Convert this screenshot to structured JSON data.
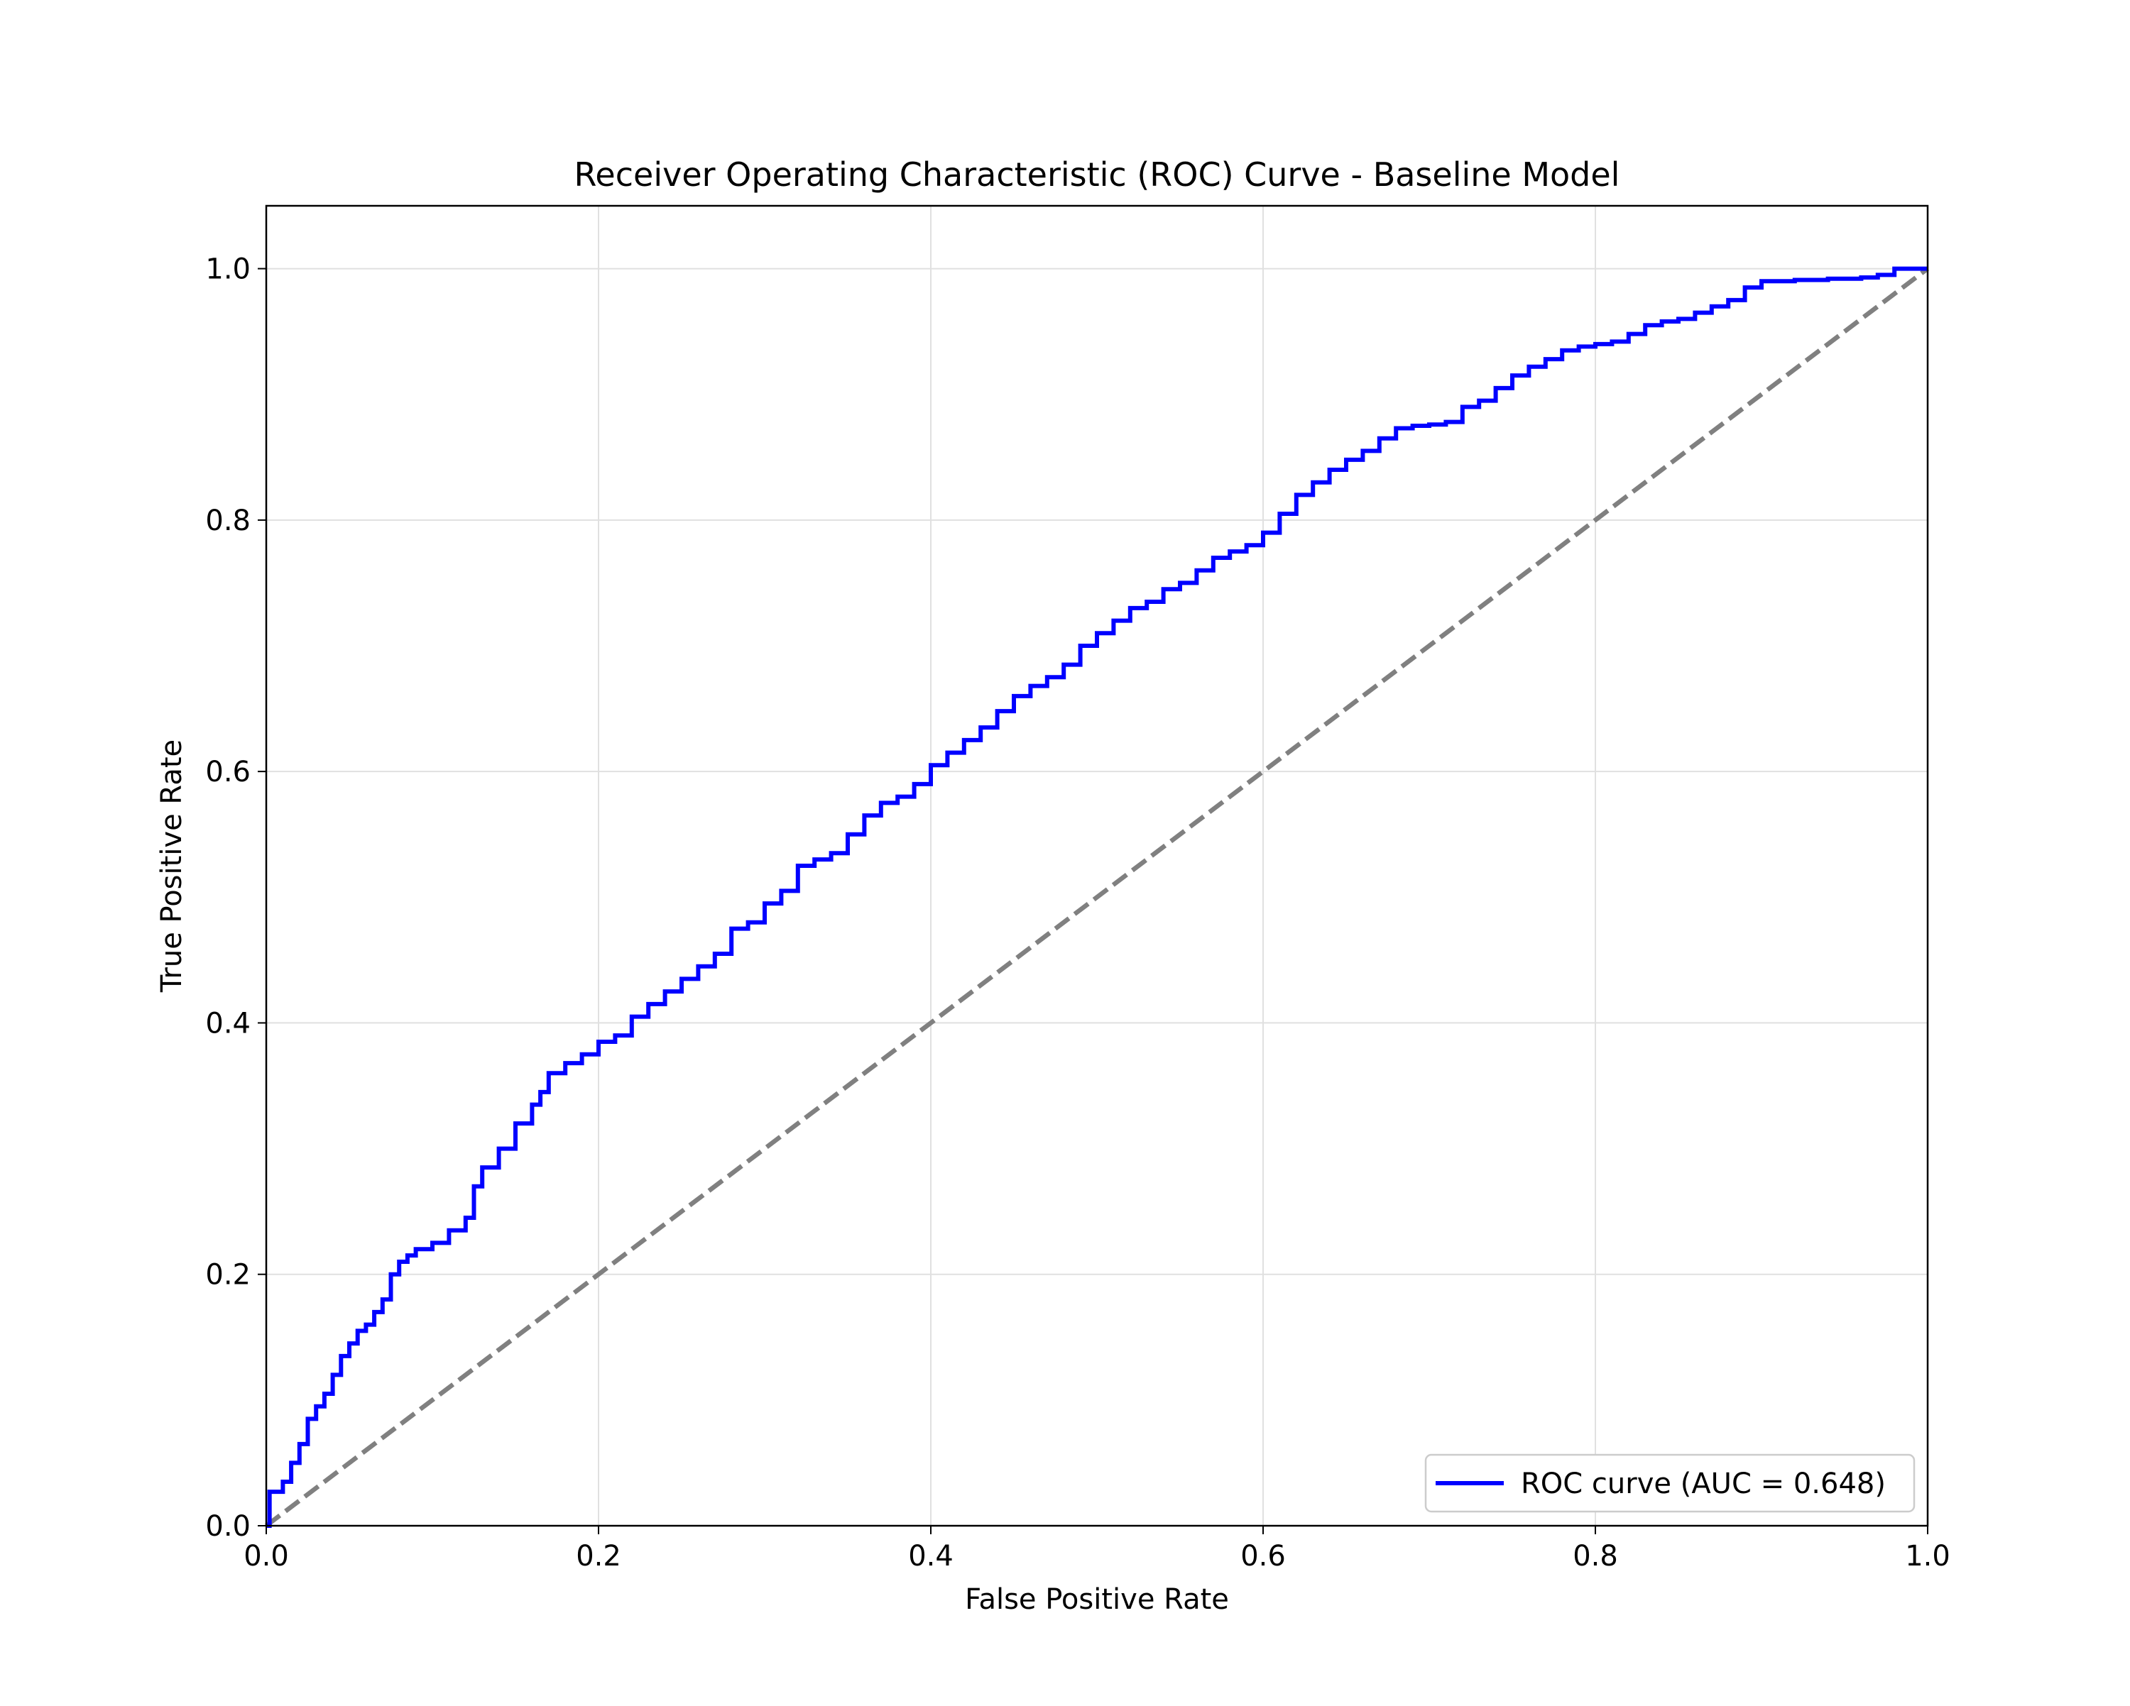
{
  "chart_data": {
    "type": "line",
    "title": "Receiver Operating Characteristic (ROC) Curve - Baseline Model",
    "xlabel": "False Positive Rate",
    "ylabel": "True Positive Rate",
    "xlim": [
      0.0,
      1.0
    ],
    "ylim": [
      0.0,
      1.05
    ],
    "x_ticks": [
      "0.0",
      "0.2",
      "0.4",
      "0.6",
      "0.8",
      "1.0"
    ],
    "y_ticks": [
      "0.0",
      "0.2",
      "0.4",
      "0.6",
      "0.8",
      "1.0"
    ],
    "grid": true,
    "legend_position": "lower-right",
    "series": [
      {
        "name": "ROC curve (AUC = 0.648)",
        "color": "#0000ff",
        "style": "step",
        "x": [
          0.0,
          0.002,
          0.01,
          0.015,
          0.02,
          0.025,
          0.03,
          0.035,
          0.04,
          0.045,
          0.05,
          0.055,
          0.06,
          0.065,
          0.07,
          0.075,
          0.08,
          0.085,
          0.09,
          0.1,
          0.11,
          0.12,
          0.125,
          0.13,
          0.14,
          0.15,
          0.16,
          0.165,
          0.17,
          0.18,
          0.19,
          0.2,
          0.21,
          0.22,
          0.23,
          0.24,
          0.25,
          0.26,
          0.27,
          0.28,
          0.29,
          0.3,
          0.31,
          0.32,
          0.33,
          0.34,
          0.35,
          0.36,
          0.37,
          0.38,
          0.39,
          0.4,
          0.41,
          0.42,
          0.43,
          0.44,
          0.45,
          0.46,
          0.47,
          0.48,
          0.49,
          0.5,
          0.51,
          0.52,
          0.53,
          0.54,
          0.55,
          0.56,
          0.57,
          0.58,
          0.59,
          0.6,
          0.61,
          0.62,
          0.63,
          0.64,
          0.65,
          0.66,
          0.67,
          0.68,
          0.69,
          0.7,
          0.71,
          0.72,
          0.73,
          0.74,
          0.75,
          0.76,
          0.77,
          0.78,
          0.79,
          0.8,
          0.81,
          0.82,
          0.83,
          0.84,
          0.85,
          0.86,
          0.87,
          0.88,
          0.89,
          0.9,
          0.92,
          0.94,
          0.96,
          0.97,
          0.98,
          1.0
        ],
        "y": [
          0.0,
          0.027,
          0.035,
          0.05,
          0.065,
          0.085,
          0.095,
          0.105,
          0.12,
          0.135,
          0.145,
          0.155,
          0.16,
          0.17,
          0.18,
          0.2,
          0.21,
          0.215,
          0.22,
          0.225,
          0.235,
          0.245,
          0.27,
          0.285,
          0.3,
          0.32,
          0.335,
          0.345,
          0.36,
          0.368,
          0.375,
          0.385,
          0.39,
          0.405,
          0.415,
          0.425,
          0.435,
          0.445,
          0.455,
          0.475,
          0.48,
          0.495,
          0.505,
          0.525,
          0.53,
          0.535,
          0.55,
          0.565,
          0.575,
          0.58,
          0.59,
          0.605,
          0.615,
          0.625,
          0.635,
          0.648,
          0.66,
          0.668,
          0.675,
          0.685,
          0.7,
          0.71,
          0.72,
          0.73,
          0.735,
          0.745,
          0.75,
          0.76,
          0.77,
          0.775,
          0.78,
          0.79,
          0.805,
          0.82,
          0.83,
          0.84,
          0.848,
          0.855,
          0.865,
          0.873,
          0.875,
          0.876,
          0.878,
          0.89,
          0.895,
          0.905,
          0.915,
          0.922,
          0.928,
          0.935,
          0.938,
          0.94,
          0.942,
          0.948,
          0.955,
          0.958,
          0.96,
          0.965,
          0.97,
          0.975,
          0.985,
          0.99,
          0.991,
          0.992,
          0.993,
          0.995,
          1.0,
          1.0
        ]
      },
      {
        "name": "",
        "color": "#808080",
        "style": "dashed",
        "x": [
          0.0,
          1.0
        ],
        "y": [
          0.0,
          1.0
        ]
      }
    ]
  }
}
